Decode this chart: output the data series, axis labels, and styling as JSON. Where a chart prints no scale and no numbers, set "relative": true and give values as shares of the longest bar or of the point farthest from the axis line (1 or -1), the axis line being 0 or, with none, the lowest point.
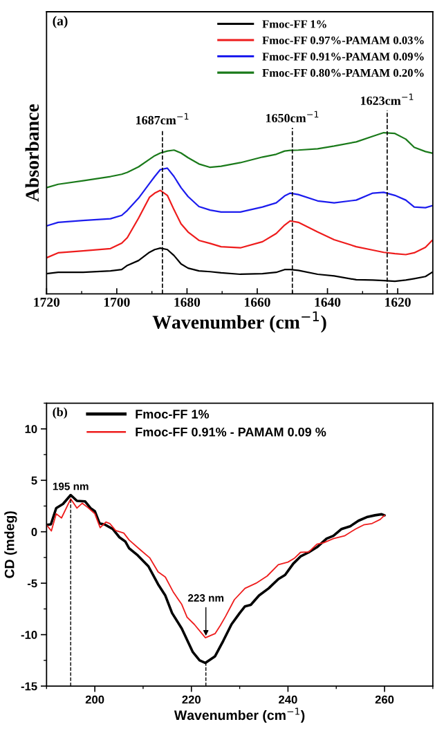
{
  "chart_data": [
    {
      "type": "line",
      "relative": true,
      "xlabel": "Wavenumber (cm$^{−1}$)",
      "ylabel": "Absorbance",
      "tick_labels": "x",
      "legend": "top right",
      "grid": false,
      "line_style": "solid",
      "marker": "none",
      "annotations": [
        "(a)"
      ],
      "xlim": [
        1720,
        1610
      ],
      "xticks": [
        1720,
        1700,
        1680,
        1660,
        1640,
        1620
      ],
      "x": [
        1720,
        1716.7,
        1709.6,
        1701.8,
        1698.6,
        1697.0,
        1693.8,
        1690.7,
        1689.2,
        1687.6,
        1685.6,
        1683.7,
        1681.7,
        1679.7,
        1676.6,
        1673.4,
        1670.3,
        1664.8,
        1658.5,
        1654.6,
        1652.2,
        1650.6,
        1648.3,
        1642.8,
        1638.1,
        1631.8,
        1627.1,
        1624.0,
        1620.8,
        1617.7,
        1615.3,
        1612.1,
        1610.2
      ],
      "ref_lines": [
        {
          "axis": "x",
          "value": 1687,
          "label": "1687cm$^{−1}$",
          "line_style": "dashed"
        },
        {
          "axis": "x",
          "value": 1650,
          "label": "1650cm$^{−1}$",
          "line_style": "dashed"
        },
        {
          "axis": "x",
          "value": 1623,
          "label": "1623cm$^{−1}$",
          "line_style": "dashed"
        }
      ],
      "series": [
        {
          "name": "Fmoc-FF 1%",
          "color": "#000000",
          "values": [
            0.126,
            0.134,
            0.134,
            0.143,
            0.151,
            0.177,
            0.207,
            0.258,
            0.275,
            0.284,
            0.275,
            0.238,
            0.186,
            0.16,
            0.143,
            0.138,
            0.131,
            0.122,
            0.126,
            0.134,
            0.151,
            0.151,
            0.146,
            0.122,
            0.112,
            0.088,
            0.086,
            0.083,
            0.079,
            0.086,
            0.095,
            0.108,
            0.134
          ]
        },
        {
          "name": "Fmoc-FF 0.97%-PAMAM 0.03%",
          "color": "#ee1c1c",
          "values": [
            0.224,
            0.255,
            0.267,
            0.281,
            0.315,
            0.349,
            0.47,
            0.599,
            0.625,
            0.642,
            0.611,
            0.522,
            0.435,
            0.384,
            0.332,
            0.313,
            0.293,
            0.286,
            0.324,
            0.375,
            0.427,
            0.453,
            0.444,
            0.384,
            0.336,
            0.293,
            0.272,
            0.258,
            0.25,
            0.244,
            0.255,
            0.289,
            0.332
          ]
        },
        {
          "name": "Fmoc-FF 0.91%-PAMAM 0.09%",
          "color": "#1c1cee",
          "values": [
            0.422,
            0.444,
            0.456,
            0.466,
            0.487,
            0.518,
            0.594,
            0.685,
            0.728,
            0.771,
            0.78,
            0.728,
            0.659,
            0.604,
            0.542,
            0.52,
            0.508,
            0.508,
            0.539,
            0.565,
            0.608,
            0.625,
            0.616,
            0.577,
            0.565,
            0.582,
            0.625,
            0.63,
            0.611,
            0.582,
            0.539,
            0.535,
            0.547
          ]
        },
        {
          "name": "Fmoc-FF 0.80%-PAMAM 0.20%",
          "color": "#1a7a1a",
          "values": [
            0.659,
            0.68,
            0.702,
            0.728,
            0.742,
            0.754,
            0.788,
            0.835,
            0.857,
            0.874,
            0.886,
            0.892,
            0.874,
            0.845,
            0.806,
            0.785,
            0.792,
            0.814,
            0.849,
            0.866,
            0.886,
            0.89,
            0.892,
            0.9,
            0.917,
            0.943,
            0.978,
            1,
            0.995,
            0.96,
            0.909,
            0.883,
            0.873
          ]
        }
      ]
    },
    {
      "type": "line",
      "xlabel": "Wavenumber (cm$^{−1}$)",
      "ylabel": "CD (mdeg)",
      "legend": "top left",
      "grid": false,
      "line_style": "solid",
      "marker": "none",
      "annotations": [
        "(b)",
        {
          "text": "195 nm",
          "x": 195,
          "y": 3.57
        },
        {
          "text": "223 nm",
          "x": 223,
          "y": -10.3
        }
      ],
      "xlim": [
        190,
        270
      ],
      "xticks": [
        200,
        220,
        240,
        260
      ],
      "ylim": [
        -15,
        12.5
      ],
      "yticks": [
        -15,
        -10,
        -5,
        0,
        5,
        10
      ],
      "ref_lines": [
        {
          "axis": "x",
          "value": 195,
          "line_style": "dashed"
        },
        {
          "axis": "x",
          "value": 223,
          "line_style": "dashed"
        }
      ],
      "series": [
        {
          "name": "Fmoc-FF 1%",
          "color": "#000000",
          "x": [
            190,
            190.9,
            192,
            193.4,
            195,
            196.3,
            198,
            199.1,
            200,
            201,
            202,
            203.7,
            205.1,
            206.3,
            207.1,
            208.9,
            211.1,
            213.1,
            214.6,
            216,
            218,
            220.3,
            221.7,
            222.9,
            224.9,
            226.6,
            228.3,
            230,
            231.1,
            232.3,
            234,
            236,
            238,
            239.4,
            241.1,
            242.6,
            244.3,
            246,
            248,
            249.4,
            251.1,
            252.9,
            254.6,
            256.3,
            258,
            259.4,
            260
          ],
          "values": [
            0.67,
            0.72,
            2.3,
            2.7,
            3.57,
            3.0,
            2.95,
            2.3,
            2.0,
            0.8,
            0.72,
            0.27,
            -0.54,
            -0.94,
            -1.6,
            -2.3,
            -3.36,
            -5.1,
            -6.2,
            -7.9,
            -9.4,
            -11.7,
            -12.5,
            -12.75,
            -12.1,
            -10.6,
            -9.0,
            -7.9,
            -7.25,
            -7.1,
            -6.2,
            -5.5,
            -4.6,
            -4.2,
            -3.1,
            -2.4,
            -2.0,
            -1.5,
            -0.67,
            -0.4,
            0.27,
            0.54,
            1.07,
            1.42,
            1.6,
            1.7,
            1.6
          ]
        },
        {
          "name": "Fmoc-FF 0.91% - PAMAM 0.09 %",
          "color": "#ee1c1c",
          "x": [
            190,
            191,
            192,
            193.1,
            195,
            196.3,
            197.4,
            198.6,
            200,
            201.1,
            202.3,
            203.1,
            204.3,
            206,
            207.1,
            209.4,
            211.4,
            213.1,
            214.6,
            216.3,
            218,
            219.1,
            220.6,
            222.9,
            224.9,
            226,
            227.1,
            228.9,
            231.1,
            233.4,
            235.7,
            238,
            240,
            241.4,
            242.6,
            244.3,
            246,
            247.4,
            249.4,
            251.7,
            254,
            255.7,
            257.4,
            259.1,
            260
          ],
          "values": [
            0.67,
            0.08,
            1.75,
            1.34,
            3.2,
            2.3,
            2.77,
            2.34,
            1.75,
            0.4,
            0.94,
            0.8,
            0.13,
            -0.13,
            -0.8,
            -1.75,
            -2.55,
            -3.9,
            -4.4,
            -5.9,
            -7.06,
            -8.3,
            -9.0,
            -10.3,
            -9.9,
            -9.1,
            -8.2,
            -6.6,
            -5.5,
            -5.0,
            -4.3,
            -3.2,
            -2.95,
            -2.55,
            -2.0,
            -1.96,
            -1.2,
            -1.07,
            -0.67,
            -0.4,
            0.27,
            0.67,
            0.8,
            1.2,
            1.6
          ]
        }
      ]
    }
  ]
}
